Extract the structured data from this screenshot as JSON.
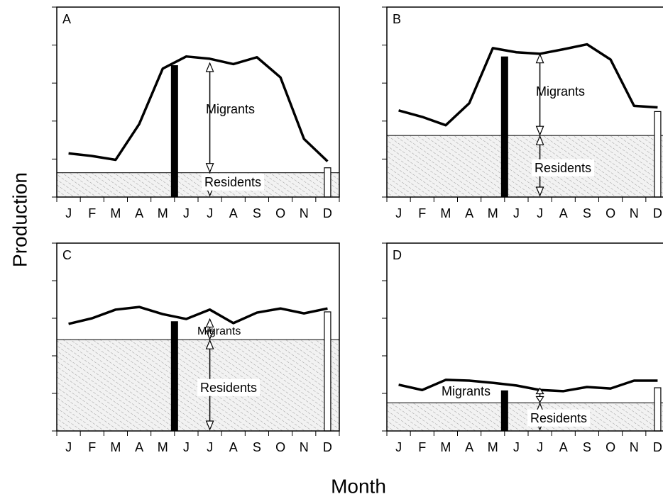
{
  "xlabel": "Month",
  "ylabel": "Production",
  "chart_data": [
    {
      "type": "line",
      "label": "A",
      "categories": [
        "J",
        "F",
        "M",
        "A",
        "M",
        "J",
        "J",
        "A",
        "S",
        "O",
        "N",
        "D"
      ],
      "values": [
        1.15,
        1.08,
        0.98,
        1.92,
        3.38,
        3.7,
        3.64,
        3.5,
        3.68,
        3.15,
        1.53,
        0.94
      ],
      "residents": 0.64,
      "total_bar": 3.47,
      "december_bar": 0.77,
      "annotations": [
        "Migrants",
        "Residents"
      ],
      "ylim": [
        0,
        5
      ],
      "yticks": [
        0,
        1,
        2,
        3,
        4,
        5
      ]
    },
    {
      "type": "line",
      "label": "B",
      "categories": [
        "J",
        "F",
        "M",
        "A",
        "M",
        "J",
        "J",
        "A",
        "S",
        "O",
        "N",
        "D"
      ],
      "values": [
        2.28,
        2.11,
        1.89,
        2.47,
        3.92,
        3.81,
        3.77,
        3.89,
        4.02,
        3.62,
        2.4,
        2.36
      ],
      "residents": 1.62,
      "total_bar": 3.7,
      "december_bar": 2.25,
      "annotations": [
        "Migrants",
        "Residents"
      ],
      "ylim": [
        0,
        5
      ],
      "yticks": [
        0,
        1,
        2,
        3,
        4,
        5
      ]
    },
    {
      "type": "line",
      "label": "C",
      "categories": [
        "J",
        "F",
        "M",
        "A",
        "M",
        "J",
        "J",
        "A",
        "S",
        "O",
        "N",
        "D"
      ],
      "values": [
        2.85,
        3.0,
        3.23,
        3.3,
        3.11,
        2.98,
        3.23,
        2.87,
        3.15,
        3.26,
        3.13,
        3.26
      ],
      "residents": 2.43,
      "total_bar": 2.92,
      "december_bar": 3.17,
      "annotations": [
        "Migrants",
        "Residents"
      ],
      "ylim": [
        0,
        5
      ],
      "yticks": [
        0,
        1,
        2,
        3,
        4,
        5
      ]
    },
    {
      "type": "line",
      "label": "D",
      "categories": [
        "J",
        "F",
        "M",
        "A",
        "M",
        "J",
        "J",
        "A",
        "S",
        "O",
        "N",
        "D"
      ],
      "values": [
        1.23,
        1.09,
        1.36,
        1.34,
        1.28,
        1.21,
        1.09,
        1.06,
        1.17,
        1.13,
        1.34,
        1.34
      ],
      "residents": 0.75,
      "total_bar": 1.08,
      "december_bar": 1.15,
      "annotations": [
        "Migrants",
        "Residents"
      ],
      "ylim": [
        0,
        5
      ],
      "yticks": [
        0,
        1,
        2,
        3,
        4,
        5
      ]
    }
  ]
}
